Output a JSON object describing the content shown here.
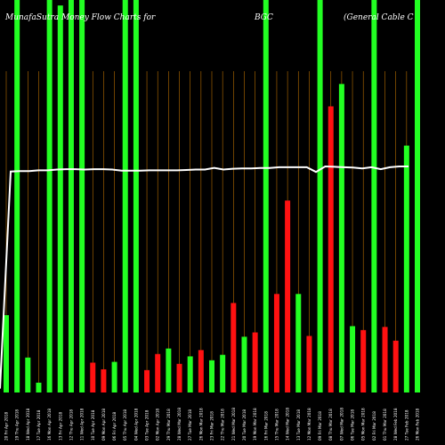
{
  "chart_data": {
    "type": "bar",
    "header": {
      "left": "MunafaSutra Money Flow Charts for",
      "center": "BGC",
      "right": "(General Cable C"
    },
    "colors": {
      "background": "#000000",
      "up": "#22ff22",
      "down": "#ff1111",
      "grid": "#b86e00",
      "price_line": "#ffffff"
    },
    "ylim": [
      0,
      100
    ],
    "grid": true,
    "price_line_values": [
      1.0,
      56.3,
      56.4,
      56.4,
      56.6,
      56.6,
      56.8,
      56.9,
      56.9,
      56.8,
      56.9,
      56.9,
      56.8,
      56.5,
      56.5,
      56.5,
      56.6,
      56.6,
      56.6,
      56.6,
      56.7,
      56.8,
      56.8,
      57.2,
      56.8,
      57.0,
      57.1,
      57.1,
      57.2,
      57.2,
      57.4,
      57.4,
      57.4,
      57.4,
      56.2,
      57.6,
      57.5,
      57.4,
      57.3,
      57.1,
      57.4,
      56.9,
      57.4,
      57.6,
      57.6
    ],
    "bars": [
      {
        "label": "20 Fri Apr 2018",
        "value": 19.7,
        "direction": "up"
      },
      {
        "label": "19 Thu Apr 2018",
        "value": 100,
        "direction": "up"
      },
      {
        "label": "18 Wed Apr 2018",
        "value": 8.9,
        "direction": "up"
      },
      {
        "label": "17 Tue Apr 2018",
        "value": 2.5,
        "direction": "up"
      },
      {
        "label": "16 Mon Apr 2018",
        "value": 100,
        "direction": "up"
      },
      {
        "label": "13 Fri Apr 2018",
        "value": 98.6,
        "direction": "up"
      },
      {
        "label": "12 Thu Apr 2018",
        "value": 100,
        "direction": "up"
      },
      {
        "label": "11 Wed Apr 2018",
        "value": 100,
        "direction": "up"
      },
      {
        "label": "10 Tue Apr 2018",
        "value": 7.6,
        "direction": "down"
      },
      {
        "label": "09 Mon Apr 2018",
        "value": 5.9,
        "direction": "down"
      },
      {
        "label": "06 Fri Apr 2018",
        "value": 7.8,
        "direction": "up"
      },
      {
        "label": "05 Thu Apr 2018",
        "value": 100,
        "direction": "up"
      },
      {
        "label": "04 Wed Apr 2018",
        "value": 100,
        "direction": "up"
      },
      {
        "label": "03 Tue Apr 2018",
        "value": 5.7,
        "direction": "down"
      },
      {
        "label": "02 Mon Apr 2018",
        "value": 9.8,
        "direction": "down"
      },
      {
        "label": "29 Thu Mar 2018",
        "value": 11.2,
        "direction": "up"
      },
      {
        "label": "28 Wed Mar 2018",
        "value": 7.3,
        "direction": "down"
      },
      {
        "label": "27 Tue Mar 2018",
        "value": 9.2,
        "direction": "up"
      },
      {
        "label": "26 Mon Mar 2018",
        "value": 10.8,
        "direction": "down"
      },
      {
        "label": "23 Fri Mar 2018",
        "value": 8.2,
        "direction": "up"
      },
      {
        "label": "22 Thu Mar 2018",
        "value": 9.6,
        "direction": "up"
      },
      {
        "label": "21 Wed Mar 2018",
        "value": 22.8,
        "direction": "down"
      },
      {
        "label": "20 Tue Mar 2018",
        "value": 14.2,
        "direction": "up"
      },
      {
        "label": "19 Mon Mar 2018",
        "value": 15.3,
        "direction": "down"
      },
      {
        "label": "16 Fri Mar 2018",
        "value": 100,
        "direction": "up"
      },
      {
        "label": "15 Thu Mar 2018",
        "value": 25.1,
        "direction": "down"
      },
      {
        "label": "14 Wed Mar 2018",
        "value": 48.9,
        "direction": "down"
      },
      {
        "label": "13 Tue Mar 2018",
        "value": 25.1,
        "direction": "up"
      },
      {
        "label": "12 Mon Mar 2018",
        "value": 14.4,
        "direction": "down"
      },
      {
        "label": "09 Fri Mar 2018",
        "value": 100,
        "direction": "up"
      },
      {
        "label": "08 Thu Mar 2018",
        "value": 72.9,
        "direction": "down"
      },
      {
        "label": "07 Wed Mar 2018",
        "value": 78.6,
        "direction": "up"
      },
      {
        "label": "06 Tue Mar 2018",
        "value": 16.9,
        "direction": "up"
      },
      {
        "label": "05 Mon Mar 2018",
        "value": 15.9,
        "direction": "down"
      },
      {
        "label": "02 Fri Mar 2018",
        "value": 100,
        "direction": "up"
      },
      {
        "label": "01 Thu Mar 2018",
        "value": 16.7,
        "direction": "down"
      },
      {
        "label": "28 Wed Feb 2018",
        "value": 13.2,
        "direction": "down"
      },
      {
        "label": "27 Tue Feb 2018",
        "value": 62.9,
        "direction": "up"
      },
      {
        "label": "26 Mon Feb 2018",
        "value": 100,
        "direction": "up"
      }
    ]
  }
}
